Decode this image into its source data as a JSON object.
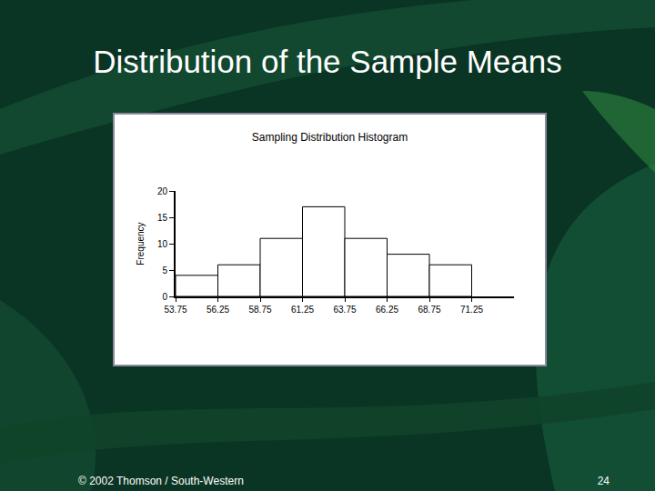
{
  "slide": {
    "heading": "Distribution of the Sample Means",
    "footer": "© 2002 Thomson / South-Western",
    "page_number": 24
  },
  "chart_data": {
    "type": "histogram",
    "title": "Sampling Distribution Histogram",
    "y_label": "Frequency",
    "bins": [
      53.75,
      56.25,
      58.75,
      61.25,
      63.75,
      66.25,
      68.75,
      71.25
    ],
    "values": [
      4,
      6,
      11,
      17,
      11,
      8,
      6
    ],
    "color": "#ffffff",
    "xlim": [
      53.75,
      73.75
    ],
    "xticks": [
      53.75,
      56.25,
      58.75,
      61.25,
      63.75,
      66.25,
      68.75,
      71.25
    ],
    "ylim": [
      0,
      20
    ],
    "yticks": [
      0,
      5,
      10,
      15,
      20
    ],
    "grid": false
  }
}
